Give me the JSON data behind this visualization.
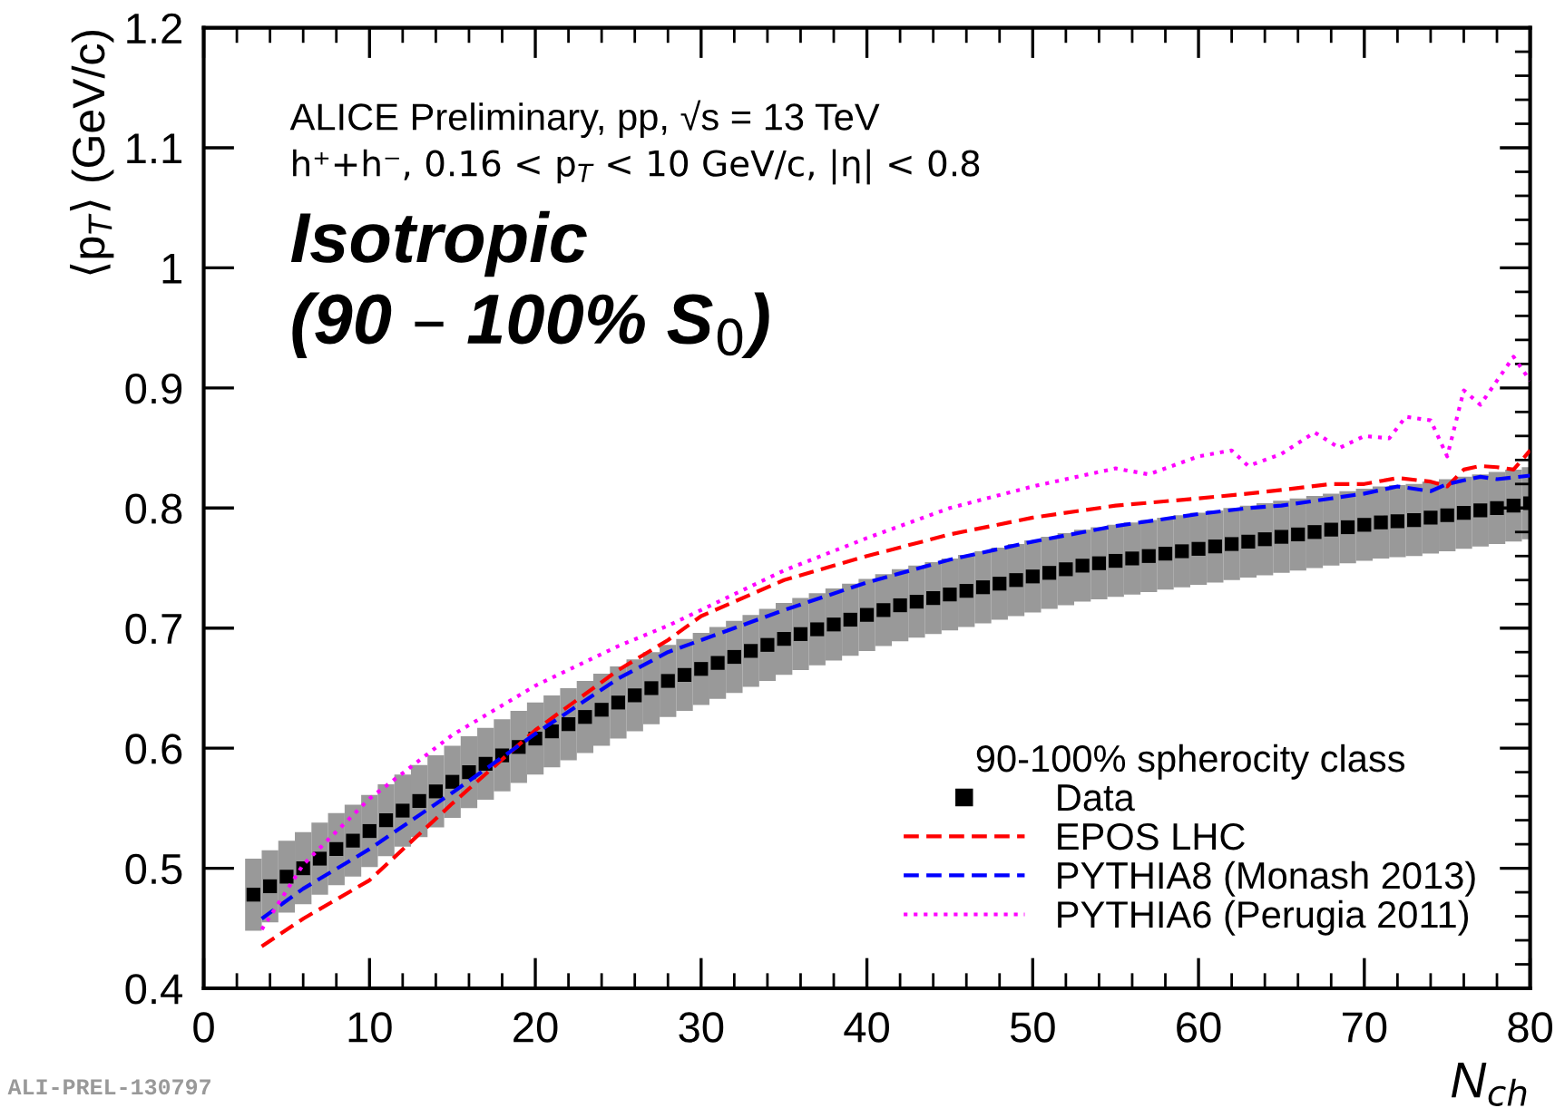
{
  "chart_data": {
    "type": "line",
    "xlabel": "N$_{ch}$",
    "ylabel": "⟨p$_{T}$⟩ (GeV/c)",
    "legend_title": "90-100% spherocity class",
    "annotations": [
      "ALICE Preliminary, pp, √s = 13 TeV",
      "h⁺+h⁻, 0.16 < p$_{T}$ < 10 GeV/c, |η| < 0.8",
      "Isotropic",
      "(90 – 100% S$_{0}$)",
      "ALI-PREL-130797"
    ],
    "xlim": [
      0,
      80
    ],
    "ylim": [
      0.4,
      1.2
    ],
    "xticks": [
      0,
      10,
      20,
      30,
      40,
      50,
      60,
      70,
      80
    ],
    "yticks": [
      0.4,
      0.5,
      0.6,
      0.7,
      0.8,
      0.9,
      1,
      1.1,
      1.2
    ],
    "grid": false,
    "legend": "bottom right",
    "series": [
      {
        "name": "Data",
        "type": "scatter",
        "marker": "square",
        "color": "#000000",
        "x": [
          3,
          4,
          5,
          6,
          7,
          8,
          9,
          10,
          11,
          12,
          13,
          14,
          15,
          16,
          17,
          18,
          19,
          20,
          21,
          22,
          23,
          24,
          25,
          26,
          27,
          28,
          29,
          30,
          31,
          32,
          33,
          34,
          35,
          36,
          37,
          38,
          39,
          40,
          41,
          42,
          43,
          44,
          45,
          46,
          47,
          48,
          49,
          50,
          51,
          52,
          53,
          54,
          55,
          56,
          57,
          58,
          59,
          60,
          61,
          62,
          63,
          64,
          65,
          66,
          67,
          68,
          69,
          70,
          71,
          72,
          73,
          74,
          75,
          76,
          77,
          78,
          79,
          80
        ],
        "values": [
          0.478,
          0.485,
          0.493,
          0.5,
          0.508,
          0.516,
          0.523,
          0.531,
          0.54,
          0.548,
          0.556,
          0.564,
          0.572,
          0.58,
          0.587,
          0.594,
          0.601,
          0.608,
          0.614,
          0.62,
          0.626,
          0.632,
          0.638,
          0.644,
          0.65,
          0.656,
          0.661,
          0.666,
          0.671,
          0.676,
          0.681,
          0.686,
          0.691,
          0.695,
          0.699,
          0.703,
          0.707,
          0.711,
          0.715,
          0.719,
          0.722,
          0.725,
          0.728,
          0.731,
          0.734,
          0.737,
          0.74,
          0.743,
          0.746,
          0.749,
          0.752,
          0.754,
          0.756,
          0.758,
          0.76,
          0.762,
          0.764,
          0.766,
          0.768,
          0.77,
          0.772,
          0.774,
          0.776,
          0.778,
          0.78,
          0.782,
          0.784,
          0.786,
          0.788,
          0.789,
          0.79,
          0.792,
          0.794,
          0.796,
          0.798,
          0.8,
          0.802,
          0.804
        ],
        "errors": [
          0.03,
          0.03,
          0.03,
          0.03,
          0.03,
          0.03,
          0.03,
          0.03,
          0.03,
          0.03,
          0.03,
          0.03,
          0.03,
          0.03,
          0.03,
          0.03,
          0.03,
          0.03,
          0.03,
          0.03,
          0.03,
          0.03,
          0.03,
          0.03,
          0.03,
          0.03,
          0.03,
          0.03,
          0.03,
          0.03,
          0.03,
          0.03,
          0.03,
          0.03,
          0.03,
          0.03,
          0.03,
          0.03,
          0.03,
          0.03,
          0.03,
          0.03,
          0.03,
          0.03,
          0.03,
          0.03,
          0.03,
          0.03,
          0.03,
          0.03,
          0.03,
          0.03,
          0.03,
          0.03,
          0.03,
          0.03,
          0.03,
          0.03,
          0.03,
          0.03,
          0.03,
          0.03,
          0.03,
          0.03,
          0.03,
          0.03,
          0.03,
          0.03,
          0.03,
          0.03,
          0.03,
          0.03,
          0.03,
          0.03,
          0.03,
          0.03,
          0.03,
          0.03
        ]
      },
      {
        "name": "EPOS LHC",
        "type": "line",
        "line_style": "dashed",
        "color": "#ff0000",
        "x": [
          3.5,
          6,
          10,
          15,
          20,
          25,
          28,
          30,
          35,
          40,
          45,
          50,
          55,
          60,
          63,
          65,
          68,
          70,
          72,
          74,
          75,
          76,
          77,
          78,
          79,
          80
        ],
        "values": [
          0.435,
          0.458,
          0.49,
          0.554,
          0.615,
          0.665,
          0.69,
          0.71,
          0.74,
          0.76,
          0.778,
          0.792,
          0.802,
          0.808,
          0.812,
          0.815,
          0.82,
          0.82,
          0.825,
          0.822,
          0.818,
          0.832,
          0.835,
          0.834,
          0.832,
          0.848
        ]
      },
      {
        "name": "PYTHIA8 (Monash 2013)",
        "type": "line",
        "line_style": "dashed",
        "color": "#0000ff",
        "x": [
          3.5,
          6,
          10,
          15,
          20,
          25,
          28,
          30,
          35,
          40,
          45,
          50,
          55,
          60,
          63,
          65,
          68,
          70,
          72,
          74,
          75,
          76,
          77,
          78,
          80
        ],
        "values": [
          0.458,
          0.483,
          0.516,
          0.563,
          0.612,
          0.658,
          0.68,
          0.69,
          0.715,
          0.738,
          0.757,
          0.772,
          0.785,
          0.795,
          0.8,
          0.802,
          0.808,
          0.812,
          0.818,
          0.814,
          0.82,
          0.823,
          0.826,
          0.824,
          0.827
        ]
      },
      {
        "name": "PYTHIA6 (Perugia 2011)",
        "type": "line",
        "line_style": "dotted",
        "color": "#ff00ff",
        "x": [
          3.5,
          6,
          10,
          15,
          20,
          25,
          28,
          30,
          35,
          40,
          45,
          50,
          55,
          57,
          60,
          62,
          63,
          65,
          67,
          68.5,
          70,
          71.5,
          72.5,
          74,
          75,
          76,
          77,
          78,
          79,
          80
        ],
        "values": [
          0.449,
          0.503,
          0.558,
          0.611,
          0.652,
          0.685,
          0.702,
          0.715,
          0.748,
          0.775,
          0.8,
          0.818,
          0.833,
          0.828,
          0.843,
          0.848,
          0.835,
          0.845,
          0.863,
          0.85,
          0.86,
          0.858,
          0.876,
          0.873,
          0.843,
          0.898,
          0.886,
          0.906,
          0.926,
          0.906
        ]
      }
    ]
  }
}
